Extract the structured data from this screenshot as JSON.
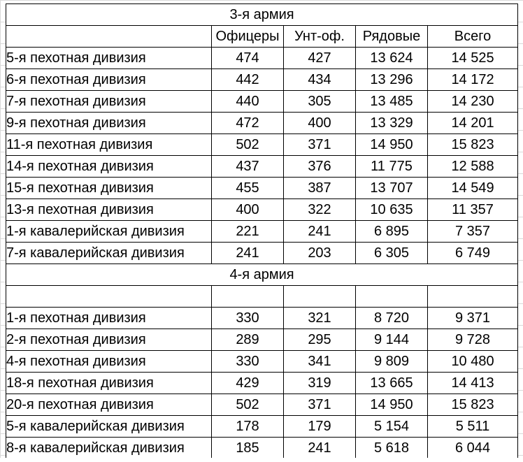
{
  "army3": {
    "title": "3-я армия",
    "headers": [
      "",
      "Офицеры",
      "Унт-оф.",
      "Рядовые",
      "Всего"
    ],
    "rows": [
      [
        "5-я пехотная дивизия",
        "474",
        "427",
        "13 624",
        "14 525"
      ],
      [
        "6-я пехотная дивизия",
        "442",
        "434",
        "13 296",
        "14 172"
      ],
      [
        "7-я пехотная дивизия",
        "440",
        "305",
        "13 485",
        "14 230"
      ],
      [
        "9-я пехотная дивизия",
        "472",
        "400",
        "13 329",
        "14 201"
      ],
      [
        "11-я пехотная дивизия",
        "502",
        "371",
        "14 950",
        "15 823"
      ],
      [
        "14-я пехотная дивизия",
        "437",
        "376",
        "11 775",
        "12 588"
      ],
      [
        "15-я пехотная дивизия",
        "455",
        "387",
        "13 707",
        "14 549"
      ],
      [
        "13-я пехотная дивизия",
        "400",
        "322",
        "10 635",
        "11 357"
      ],
      [
        "1-я кавалерийская дивизия",
        "221",
        "241",
        "6 895",
        "7 357"
      ],
      [
        "7-я кавалерийская дивизия",
        "241",
        "203",
        "6 305",
        "6 749"
      ]
    ]
  },
  "army4": {
    "title": "4-я армия",
    "rows": [
      [
        "1-я пехотная дивизия",
        "330",
        "321",
        "8 720",
        "9 371"
      ],
      [
        "2-я пехотная дивизия",
        "289",
        "295",
        "9 144",
        "9 728"
      ],
      [
        "4-я пехотная дивизия",
        "330",
        "341",
        "9 809",
        "10 480"
      ],
      [
        "18-я пехотная дивизия",
        "429",
        "319",
        "13 665",
        "14 413"
      ],
      [
        "20-я пехотная дивизия",
        "502",
        "371",
        "14 950",
        "15 823"
      ],
      [
        "5-я кавалерийская дивизия",
        "178",
        "179",
        "5 154",
        "5 511"
      ],
      [
        "8-я кавалерийская дивизия",
        "185",
        "241",
        "5 618",
        "6 044"
      ]
    ]
  }
}
